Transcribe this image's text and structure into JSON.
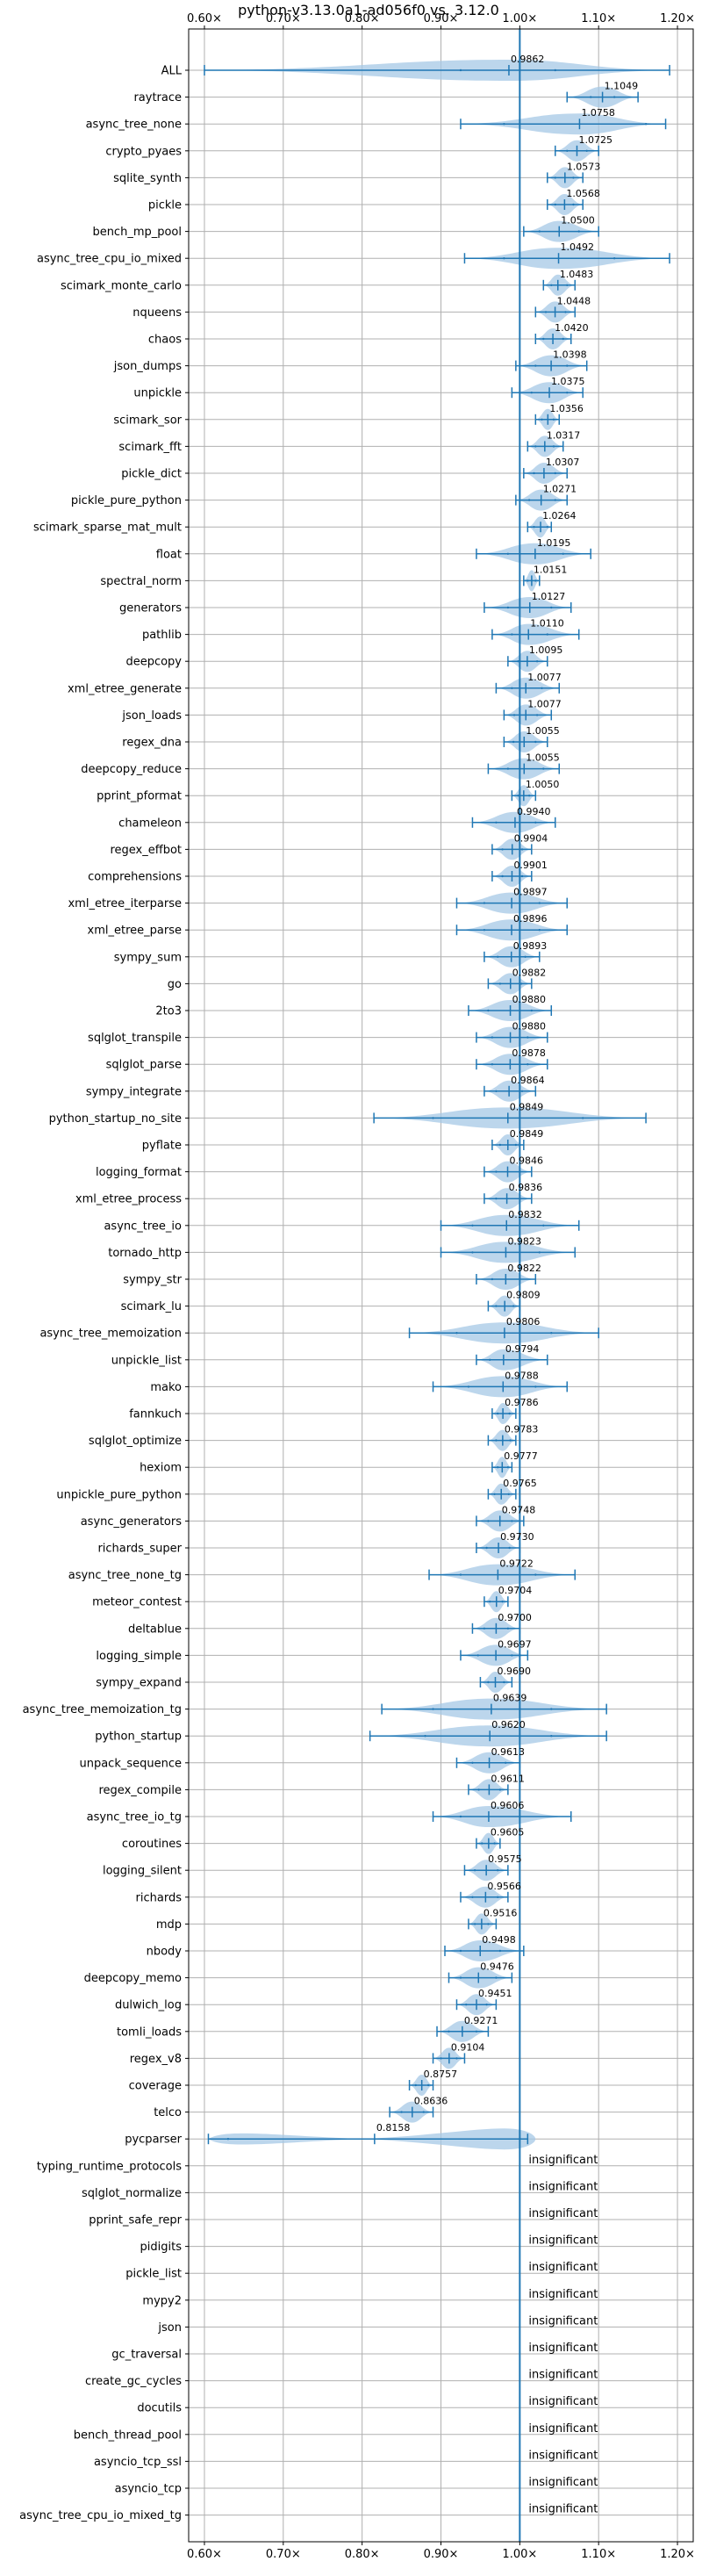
{
  "chart_data": {
    "type": "violin",
    "title": "python-v3.13.0a1-ad056f0 vs. 3.12.0",
    "xlim": [
      0.58,
      1.22
    ],
    "xticks": [
      0.6,
      0.7,
      0.8,
      0.9,
      1.0,
      1.1,
      1.2
    ],
    "xtick_labels": [
      "0.60×",
      "0.70×",
      "0.80×",
      "0.90×",
      "1.00×",
      "1.10×",
      "1.20×"
    ],
    "reference_line": 1.0,
    "grid": true,
    "colors": {
      "violin": "#a6c8e6",
      "bar": "#1f77b4",
      "reference": "#1f77b4",
      "grid": "#b0b0b0"
    },
    "rows": [
      {
        "name": "ALL",
        "mean": 0.9862,
        "label": "0.9862",
        "min": 0.6,
        "max": 1.19,
        "q1": 0.925,
        "q3": 1.045,
        "spread": 0.06
      },
      {
        "name": "raytrace",
        "mean": 1.1049,
        "label": "1.1049",
        "min": 1.06,
        "max": 1.15,
        "q1": 1.09,
        "q3": 1.12,
        "spread": 0.04
      },
      {
        "name": "async_tree_none",
        "mean": 1.0758,
        "label": "1.0758",
        "min": 0.925,
        "max": 1.185,
        "q1": 0.98,
        "q3": 1.16,
        "spread": 0.13
      },
      {
        "name": "crypto_pyaes",
        "mean": 1.0725,
        "label": "1.0725",
        "min": 1.045,
        "max": 1.1,
        "q1": 1.06,
        "q3": 1.085,
        "spread": 0.025
      },
      {
        "name": "sqlite_synth",
        "mean": 1.0573,
        "label": "1.0573",
        "min": 1.035,
        "max": 1.08,
        "q1": 1.045,
        "q3": 1.068,
        "spread": 0.02
      },
      {
        "name": "pickle",
        "mean": 1.0568,
        "label": "1.0568",
        "min": 1.035,
        "max": 1.08,
        "q1": 1.045,
        "q3": 1.068,
        "spread": 0.02
      },
      {
        "name": "bench_mp_pool",
        "mean": 1.05,
        "label": "1.0500",
        "min": 1.005,
        "max": 1.1,
        "q1": 1.025,
        "q3": 1.075,
        "spread": 0.045
      },
      {
        "name": "async_tree_cpu_io_mixed",
        "mean": 1.0492,
        "label": "1.0492",
        "min": 0.93,
        "max": 1.19,
        "q1": 0.98,
        "q3": 1.12,
        "spread": 0.12
      },
      {
        "name": "scimark_monte_carlo",
        "mean": 1.0483,
        "label": "1.0483",
        "min": 1.03,
        "max": 1.07,
        "q1": 1.04,
        "q3": 1.06,
        "spread": 0.018
      },
      {
        "name": "nqueens",
        "mean": 1.0448,
        "label": "1.0448",
        "min": 1.02,
        "max": 1.07,
        "q1": 1.033,
        "q3": 1.058,
        "spread": 0.022
      },
      {
        "name": "chaos",
        "mean": 1.042,
        "label": "1.0420",
        "min": 1.02,
        "max": 1.065,
        "q1": 1.03,
        "q3": 1.055,
        "spread": 0.02
      },
      {
        "name": "json_dumps",
        "mean": 1.0398,
        "label": "1.0398",
        "min": 0.995,
        "max": 1.085,
        "q1": 1.02,
        "q3": 1.06,
        "spread": 0.04
      },
      {
        "name": "unpickle",
        "mean": 1.0375,
        "label": "1.0375",
        "min": 0.99,
        "max": 1.08,
        "q1": 1.015,
        "q3": 1.06,
        "spread": 0.04
      },
      {
        "name": "scimark_sor",
        "mean": 1.0356,
        "label": "1.0356",
        "min": 1.02,
        "max": 1.05,
        "q1": 1.028,
        "q3": 1.043,
        "spread": 0.015
      },
      {
        "name": "scimark_fft",
        "mean": 1.0317,
        "label": "1.0317",
        "min": 1.01,
        "max": 1.055,
        "q1": 1.02,
        "q3": 1.043,
        "spread": 0.02
      },
      {
        "name": "pickle_dict",
        "mean": 1.0307,
        "label": "1.0307",
        "min": 1.005,
        "max": 1.06,
        "q1": 1.018,
        "q3": 1.045,
        "spread": 0.025
      },
      {
        "name": "pickle_pure_python",
        "mean": 1.0271,
        "label": "1.0271",
        "min": 0.995,
        "max": 1.06,
        "q1": 1.012,
        "q3": 1.045,
        "spread": 0.03
      },
      {
        "name": "scimark_sparse_mat_mult",
        "mean": 1.0264,
        "label": "1.0264",
        "min": 1.01,
        "max": 1.04,
        "q1": 1.018,
        "q3": 1.035,
        "spread": 0.015
      },
      {
        "name": "float",
        "mean": 1.0195,
        "label": "1.0195",
        "min": 0.945,
        "max": 1.09,
        "q1": 0.985,
        "q3": 1.055,
        "spread": 0.07
      },
      {
        "name": "spectral_norm",
        "mean": 1.0151,
        "label": "1.0151",
        "min": 1.005,
        "max": 1.025,
        "q1": 1.01,
        "q3": 1.02,
        "spread": 0.01
      },
      {
        "name": "generators",
        "mean": 1.0127,
        "label": "1.0127",
        "min": 0.955,
        "max": 1.065,
        "q1": 0.985,
        "q3": 1.04,
        "spread": 0.05
      },
      {
        "name": "pathlib",
        "mean": 1.011,
        "label": "1.0110",
        "min": 0.965,
        "max": 1.075,
        "q1": 0.99,
        "q3": 1.035,
        "spread": 0.045
      },
      {
        "name": "deepcopy",
        "mean": 1.0095,
        "label": "1.0095",
        "min": 0.985,
        "max": 1.035,
        "q1": 0.998,
        "q3": 1.022,
        "spread": 0.022
      },
      {
        "name": "xml_etree_generate",
        "mean": 1.0077,
        "label": "1.0077",
        "min": 0.97,
        "max": 1.05,
        "q1": 0.99,
        "q3": 1.028,
        "spread": 0.035
      },
      {
        "name": "json_loads",
        "mean": 1.0077,
        "label": "1.0077",
        "min": 0.98,
        "max": 1.04,
        "q1": 0.993,
        "q3": 1.022,
        "spread": 0.028
      },
      {
        "name": "regex_dna",
        "mean": 1.0055,
        "label": "1.0055",
        "min": 0.98,
        "max": 1.035,
        "q1": 0.992,
        "q3": 1.02,
        "spread": 0.025
      },
      {
        "name": "deepcopy_reduce",
        "mean": 1.0055,
        "label": "1.0055",
        "min": 0.96,
        "max": 1.05,
        "q1": 0.985,
        "q3": 1.03,
        "spread": 0.04
      },
      {
        "name": "pprint_pformat",
        "mean": 1.005,
        "label": "1.0050",
        "min": 0.99,
        "max": 1.02,
        "q1": 0.998,
        "q3": 1.012,
        "spread": 0.014
      },
      {
        "name": "chameleon",
        "mean": 0.994,
        "label": "0.9940",
        "min": 0.94,
        "max": 1.045,
        "q1": 0.97,
        "q3": 1.02,
        "spread": 0.045
      },
      {
        "name": "regex_effbot",
        "mean": 0.9904,
        "label": "0.9904",
        "min": 0.965,
        "max": 1.015,
        "q1": 0.978,
        "q3": 1.003,
        "spread": 0.022
      },
      {
        "name": "comprehensions",
        "mean": 0.9901,
        "label": "0.9901",
        "min": 0.965,
        "max": 1.015,
        "q1": 0.978,
        "q3": 1.003,
        "spread": 0.022
      },
      {
        "name": "xml_etree_iterparse",
        "mean": 0.9897,
        "label": "0.9897",
        "min": 0.92,
        "max": 1.06,
        "q1": 0.955,
        "q3": 1.025,
        "spread": 0.06
      },
      {
        "name": "xml_etree_parse",
        "mean": 0.9896,
        "label": "0.9896",
        "min": 0.92,
        "max": 1.06,
        "q1": 0.955,
        "q3": 1.025,
        "spread": 0.06
      },
      {
        "name": "sympy_sum",
        "mean": 0.9893,
        "label": "0.9893",
        "min": 0.955,
        "max": 1.025,
        "q1": 0.972,
        "q3": 1.007,
        "spread": 0.03
      },
      {
        "name": "go",
        "mean": 0.9882,
        "label": "0.9882",
        "min": 0.96,
        "max": 1.015,
        "q1": 0.975,
        "q3": 1.002,
        "spread": 0.025
      },
      {
        "name": "2to3",
        "mean": 0.988,
        "label": "0.9880",
        "min": 0.935,
        "max": 1.04,
        "q1": 0.96,
        "q3": 1.015,
        "spread": 0.045
      },
      {
        "name": "sqlglot_transpile",
        "mean": 0.988,
        "label": "0.9880",
        "min": 0.945,
        "max": 1.035,
        "q1": 0.965,
        "q3": 1.01,
        "spread": 0.04
      },
      {
        "name": "sqlglot_parse",
        "mean": 0.9878,
        "label": "0.9878",
        "min": 0.945,
        "max": 1.035,
        "q1": 0.965,
        "q3": 1.01,
        "spread": 0.04
      },
      {
        "name": "sympy_integrate",
        "mean": 0.9864,
        "label": "0.9864",
        "min": 0.955,
        "max": 1.02,
        "q1": 0.97,
        "q3": 1.003,
        "spread": 0.03
      },
      {
        "name": "python_startup_no_site",
        "mean": 0.9849,
        "label": "0.9849",
        "min": 0.815,
        "max": 1.16,
        "q1": 0.89,
        "q3": 1.08,
        "spread": 0.15
      },
      {
        "name": "pyflate",
        "mean": 0.9849,
        "label": "0.9849",
        "min": 0.965,
        "max": 1.005,
        "q1": 0.975,
        "q3": 0.995,
        "spread": 0.018
      },
      {
        "name": "logging_format",
        "mean": 0.9846,
        "label": "0.9846",
        "min": 0.955,
        "max": 1.015,
        "q1": 0.97,
        "q3": 1.0,
        "spread": 0.028
      },
      {
        "name": "xml_etree_process",
        "mean": 0.9836,
        "label": "0.9836",
        "min": 0.955,
        "max": 1.015,
        "q1": 0.97,
        "q3": 1.0,
        "spread": 0.028
      },
      {
        "name": "async_tree_io",
        "mean": 0.9832,
        "label": "0.9832",
        "min": 0.9,
        "max": 1.075,
        "q1": 0.94,
        "q3": 1.03,
        "spread": 0.08
      },
      {
        "name": "tornado_http",
        "mean": 0.9823,
        "label": "0.9823",
        "min": 0.9,
        "max": 1.07,
        "q1": 0.94,
        "q3": 1.025,
        "spread": 0.075
      },
      {
        "name": "sympy_str",
        "mean": 0.9822,
        "label": "0.9822",
        "min": 0.945,
        "max": 1.02,
        "q1": 0.965,
        "q3": 1.0,
        "spread": 0.035
      },
      {
        "name": "scimark_lu",
        "mean": 0.9809,
        "label": "0.9809",
        "min": 0.96,
        "max": 1.0,
        "q1": 0.97,
        "q3": 0.992,
        "spread": 0.018
      },
      {
        "name": "async_tree_memoization",
        "mean": 0.9806,
        "label": "0.9806",
        "min": 0.86,
        "max": 1.1,
        "q1": 0.92,
        "q3": 1.04,
        "spread": 0.1
      },
      {
        "name": "unpickle_list",
        "mean": 0.9794,
        "label": "0.9794",
        "min": 0.945,
        "max": 1.035,
        "q1": 0.962,
        "q3": 1.0,
        "spread": 0.035
      },
      {
        "name": "mako",
        "mean": 0.9788,
        "label": "0.9788",
        "min": 0.89,
        "max": 1.06,
        "q1": 0.935,
        "q3": 1.02,
        "spread": 0.075
      },
      {
        "name": "fannkuch",
        "mean": 0.9786,
        "label": "0.9786",
        "min": 0.965,
        "max": 0.995,
        "q1": 0.972,
        "q3": 0.987,
        "spread": 0.013
      },
      {
        "name": "sqlglot_optimize",
        "mean": 0.9783,
        "label": "0.9783",
        "min": 0.96,
        "max": 0.995,
        "q1": 0.97,
        "q3": 0.988,
        "spread": 0.016
      },
      {
        "name": "hexiom",
        "mean": 0.9777,
        "label": "0.9777",
        "min": 0.965,
        "max": 0.99,
        "q1": 0.972,
        "q3": 0.985,
        "spread": 0.012
      },
      {
        "name": "unpickle_pure_python",
        "mean": 0.9765,
        "label": "0.9765",
        "min": 0.96,
        "max": 0.995,
        "q1": 0.968,
        "q3": 0.986,
        "spread": 0.016
      },
      {
        "name": "async_generators",
        "mean": 0.9748,
        "label": "0.9748",
        "min": 0.945,
        "max": 1.005,
        "q1": 0.96,
        "q3": 0.99,
        "spread": 0.028
      },
      {
        "name": "richards_super",
        "mean": 0.973,
        "label": "0.9730",
        "min": 0.945,
        "max": 1.0,
        "q1": 0.958,
        "q3": 0.987,
        "spread": 0.025
      },
      {
        "name": "async_tree_none_tg",
        "mean": 0.9722,
        "label": "0.9722",
        "min": 0.885,
        "max": 1.07,
        "q1": 0.925,
        "q3": 1.02,
        "spread": 0.085
      },
      {
        "name": "meteor_contest",
        "mean": 0.9704,
        "label": "0.9704",
        "min": 0.955,
        "max": 0.985,
        "q1": 0.962,
        "q3": 0.978,
        "spread": 0.014
      },
      {
        "name": "deltablue",
        "mean": 0.97,
        "label": "0.9700",
        "min": 0.94,
        "max": 1.0,
        "q1": 0.955,
        "q3": 0.985,
        "spread": 0.027
      },
      {
        "name": "logging_simple",
        "mean": 0.9697,
        "label": "0.9697",
        "min": 0.925,
        "max": 1.01,
        "q1": 0.947,
        "q3": 0.99,
        "spread": 0.04
      },
      {
        "name": "sympy_expand",
        "mean": 0.969,
        "label": "0.9690",
        "min": 0.95,
        "max": 0.99,
        "q1": 0.96,
        "q3": 0.98,
        "spread": 0.018
      },
      {
        "name": "async_tree_memoization_tg",
        "mean": 0.9639,
        "label": "0.9639",
        "min": 0.825,
        "max": 1.11,
        "q1": 0.89,
        "q3": 1.04,
        "spread": 0.13
      },
      {
        "name": "python_startup",
        "mean": 0.962,
        "label": "0.9620",
        "min": 0.81,
        "max": 1.11,
        "q1": 0.88,
        "q3": 1.04,
        "spread": 0.14
      },
      {
        "name": "unpack_sequence",
        "mean": 0.9613,
        "label": "0.9613",
        "min": 0.92,
        "max": 1.0,
        "q1": 0.94,
        "q3": 0.982,
        "spread": 0.035
      },
      {
        "name": "regex_compile",
        "mean": 0.9611,
        "label": "0.9611",
        "min": 0.935,
        "max": 0.985,
        "q1": 0.948,
        "q3": 0.975,
        "spread": 0.022
      },
      {
        "name": "async_tree_io_tg",
        "mean": 0.9606,
        "label": "0.9606",
        "min": 0.89,
        "max": 1.065,
        "q1": 0.925,
        "q3": 1.0,
        "spread": 0.08
      },
      {
        "name": "coroutines",
        "mean": 0.9605,
        "label": "0.9605",
        "min": 0.945,
        "max": 0.975,
        "q1": 0.952,
        "q3": 0.968,
        "spread": 0.013
      },
      {
        "name": "logging_silent",
        "mean": 0.9575,
        "label": "0.9575",
        "min": 0.93,
        "max": 0.985,
        "q1": 0.943,
        "q3": 0.972,
        "spread": 0.024
      },
      {
        "name": "richards",
        "mean": 0.9566,
        "label": "0.9566",
        "min": 0.925,
        "max": 0.985,
        "q1": 0.94,
        "q3": 0.972,
        "spread": 0.026
      },
      {
        "name": "mdp",
        "mean": 0.9516,
        "label": "0.9516",
        "min": 0.935,
        "max": 0.97,
        "q1": 0.943,
        "q3": 0.96,
        "spread": 0.015
      },
      {
        "name": "nbody",
        "mean": 0.9498,
        "label": "0.9498",
        "min": 0.905,
        "max": 1.005,
        "q1": 0.925,
        "q3": 0.975,
        "spread": 0.04
      },
      {
        "name": "deepcopy_memo",
        "mean": 0.9476,
        "label": "0.9476",
        "min": 0.91,
        "max": 0.99,
        "q1": 0.925,
        "q3": 0.97,
        "spread": 0.035
      },
      {
        "name": "dulwich_log",
        "mean": 0.9451,
        "label": "0.9451",
        "min": 0.92,
        "max": 0.97,
        "q1": 0.932,
        "q3": 0.958,
        "spread": 0.022
      },
      {
        "name": "tomli_loads",
        "mean": 0.9271,
        "label": "0.9271",
        "min": 0.895,
        "max": 0.96,
        "q1": 0.91,
        "q3": 0.945,
        "spread": 0.028
      },
      {
        "name": "regex_v8",
        "mean": 0.9104,
        "label": "0.9104",
        "min": 0.89,
        "max": 0.93,
        "q1": 0.9,
        "q3": 0.92,
        "spread": 0.018
      },
      {
        "name": "coverage",
        "mean": 0.8757,
        "label": "0.8757",
        "min": 0.86,
        "max": 0.89,
        "q1": 0.868,
        "q3": 0.884,
        "spread": 0.014
      },
      {
        "name": "telco",
        "mean": 0.8636,
        "label": "0.8636",
        "min": 0.835,
        "max": 0.89,
        "q1": 0.85,
        "q3": 0.878,
        "spread": 0.024
      },
      {
        "name": "pycparser",
        "mean": 0.8158,
        "label": "0.8158",
        "min": 0.605,
        "max": 1.01,
        "q1": 0.63,
        "q3": 1.0,
        "spread": 0.2,
        "bimodal": [
          0.605,
          0.64,
          0.98,
          1.01
        ]
      }
    ],
    "insignificant_label": "insignificant",
    "insignificant": [
      "typing_runtime_protocols",
      "sqlglot_normalize",
      "pprint_safe_repr",
      "pidigits",
      "pickle_list",
      "mypy2",
      "json",
      "gc_traversal",
      "create_gc_cycles",
      "docutils",
      "bench_thread_pool",
      "asyncio_tcp_ssl",
      "asyncio_tcp",
      "async_tree_cpu_io_mixed_tg"
    ]
  }
}
